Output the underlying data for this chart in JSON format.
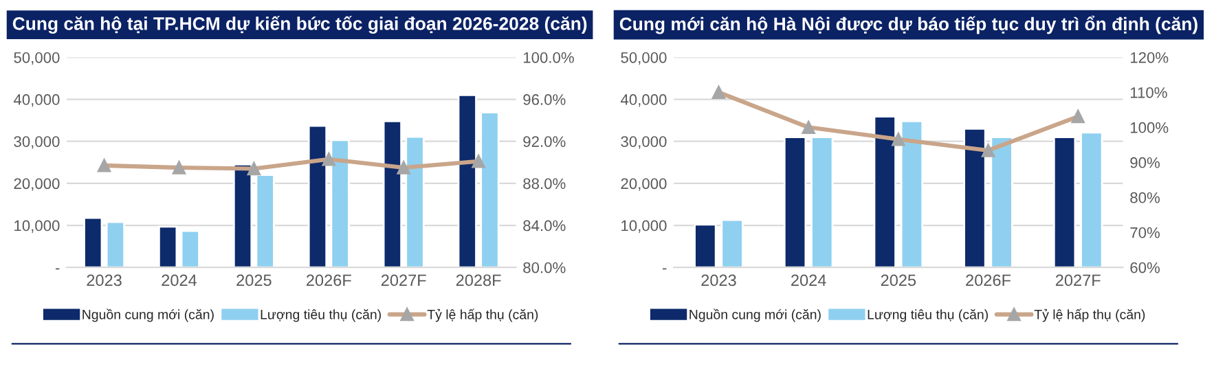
{
  "chart_data": [
    {
      "type": "bar",
      "title": "Cung căn hộ tại TP.HCM dự kiến bức tốc giai đoạn 2026-2028 (căn)",
      "categories": [
        "2023",
        "2024",
        "2025",
        "2026F",
        "2027F",
        "2028F"
      ],
      "series": [
        {
          "name": "Nguồn cung mới (căn)",
          "color": "#0d2a6b",
          "values": [
            11800,
            9700,
            24500,
            33700,
            34800,
            41000
          ]
        },
        {
          "name": "Lượng tiêu thụ (căn)",
          "color": "#8fd0f0",
          "values": [
            10800,
            8700,
            22000,
            30300,
            31100,
            36900
          ]
        },
        {
          "name": "Tỷ lệ hấp thụ (căn)",
          "type": "line",
          "axis": "y2",
          "color": "#c9a58a",
          "marker": "triangle",
          "values": [
            89.7,
            89.5,
            89.4,
            90.3,
            89.5,
            90.1
          ]
        }
      ],
      "ylim": [
        0,
        50000
      ],
      "yticks": [
        {
          "value": 0,
          "label": "-"
        },
        {
          "value": 10000,
          "label": "10,000"
        },
        {
          "value": 20000,
          "label": "20,000"
        },
        {
          "value": 30000,
          "label": "30,000"
        },
        {
          "value": 40000,
          "label": "40,000"
        },
        {
          "value": 50000,
          "label": "50,000"
        }
      ],
      "y2lim": [
        80,
        100
      ],
      "y2ticks": [
        {
          "value": 80,
          "label": "80.0%"
        },
        {
          "value": 84,
          "label": "84.0%"
        },
        {
          "value": 88,
          "label": "88.0%"
        },
        {
          "value": 92,
          "label": "92.0%"
        },
        {
          "value": 96,
          "label": "96.0%"
        },
        {
          "value": 100,
          "label": "100.0%"
        }
      ],
      "grid": "y",
      "legend": "bottom"
    },
    {
      "type": "bar",
      "title": "Cung mới căn hộ Hà Nội được dự báo tiếp tục duy trì ổn định (căn)",
      "categories": [
        "2023",
        "2024",
        "2025",
        "2026F",
        "2027F"
      ],
      "series": [
        {
          "name": "Nguồn cung mới (căn)",
          "color": "#0d2a6b",
          "values": [
            10200,
            31000,
            35900,
            33000,
            31000
          ]
        },
        {
          "name": "Lượng tiêu thụ (căn)",
          "color": "#8fd0f0",
          "values": [
            11300,
            31000,
            34800,
            31000,
            32100
          ]
        },
        {
          "name": "Tỷ lệ hấp thụ (căn)",
          "type": "line",
          "axis": "y2",
          "color": "#c9a58a",
          "marker": "triangle",
          "values": [
            110,
            100,
            96.6,
            93.4,
            103.1
          ]
        }
      ],
      "ylim": [
        0,
        50000
      ],
      "yticks": [
        {
          "value": 0,
          "label": "-"
        },
        {
          "value": 10000,
          "label": "10,000"
        },
        {
          "value": 20000,
          "label": "20,000"
        },
        {
          "value": 30000,
          "label": "30,000"
        },
        {
          "value": 40000,
          "label": "40,000"
        },
        {
          "value": 50000,
          "label": "50,000"
        }
      ],
      "y2lim": [
        60,
        120
      ],
      "y2ticks": [
        {
          "value": 60,
          "label": "60%"
        },
        {
          "value": 70,
          "label": "70%"
        },
        {
          "value": 80,
          "label": "80%"
        },
        {
          "value": 90,
          "label": "90%"
        },
        {
          "value": 100,
          "label": "100%"
        },
        {
          "value": 110,
          "label": "110%"
        },
        {
          "value": 120,
          "label": "120%"
        }
      ],
      "grid": "y",
      "legend": "bottom"
    }
  ]
}
